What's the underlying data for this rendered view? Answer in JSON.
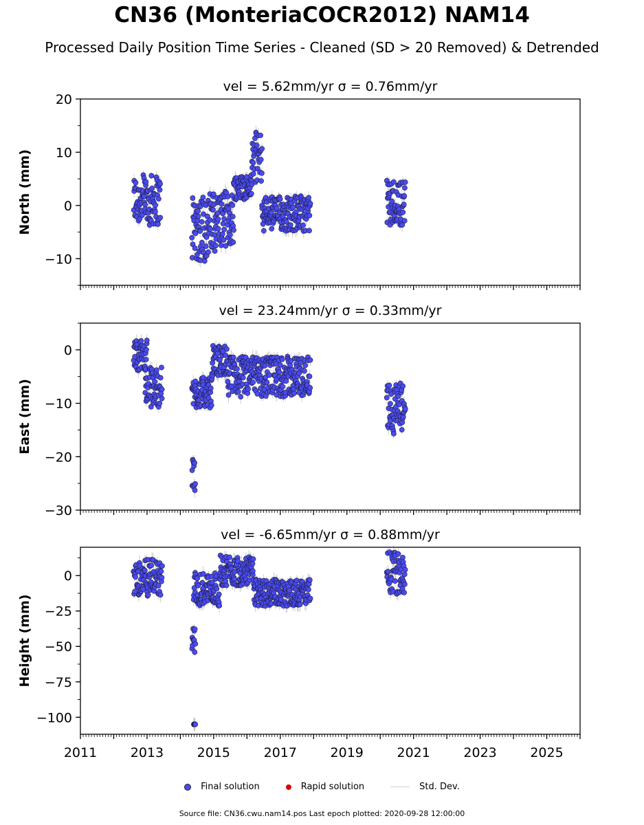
{
  "title": "CN36 (MonteriaCOCR2012) NAM14",
  "subtitle": "Processed Daily Position Time Series - Cleaned (SD > 20 Removed) & Detrended",
  "legend": {
    "final": "Final solution",
    "rapid": "Rapid solution",
    "std": "Std. Dev."
  },
  "source": "Source file: CN36.cwu.nam14.pos  Last epoch plotted: 2020-09-28 12:00:00",
  "colors": {
    "final": "#4b4bf0",
    "rapid": "#e00000",
    "std": "#bdbdbd"
  },
  "chart_data": [
    {
      "type": "scatter",
      "title": "vel = 5.62mm/yr   σ = 0.76mm/yr",
      "ylabel": "North (mm)",
      "xlim": [
        2011,
        2026
      ],
      "ylim": [
        -15,
        20
      ],
      "yticks": [
        -10,
        0,
        10,
        20
      ],
      "segments": [
        {
          "x": [
            2012.6,
            2013.4
          ],
          "y": [
            -4,
            6
          ]
        },
        {
          "x": [
            2014.35,
            2015.05
          ],
          "y": [
            -11,
            3
          ]
        },
        {
          "x": [
            2015.05,
            2015.6
          ],
          "y": [
            -8,
            3
          ]
        },
        {
          "x": [
            2015.6,
            2016.15
          ],
          "y": [
            1,
            6
          ]
        },
        {
          "x": [
            2016.15,
            2016.45
          ],
          "y": [
            4,
            14
          ]
        },
        {
          "x": [
            2016.45,
            2017.9
          ],
          "y": [
            -5,
            2
          ]
        },
        {
          "x": [
            2020.2,
            2020.75
          ],
          "y": [
            -4,
            5
          ]
        }
      ]
    },
    {
      "type": "scatter",
      "title": "vel = 23.24mm/yr   σ = 0.33mm/yr",
      "ylabel": "East (mm)",
      "xlim": [
        2011,
        2026
      ],
      "ylim": [
        -30,
        5
      ],
      "yticks": [
        -30,
        -20,
        -10,
        0
      ],
      "segments": [
        {
          "x": [
            2012.6,
            2013.0
          ],
          "y": [
            -4,
            2
          ]
        },
        {
          "x": [
            2012.95,
            2013.45
          ],
          "y": [
            -11,
            -3
          ]
        },
        {
          "x": [
            2014.35,
            2014.45
          ],
          "y": [
            -27,
            -20
          ]
        },
        {
          "x": [
            2014.35,
            2014.95
          ],
          "y": [
            -11,
            -5
          ]
        },
        {
          "x": [
            2014.95,
            2015.4
          ],
          "y": [
            -5,
            1
          ]
        },
        {
          "x": [
            2015.4,
            2017.9
          ],
          "y": [
            -9,
            -1
          ]
        },
        {
          "x": [
            2020.2,
            2020.75
          ],
          "y": [
            -16,
            -6
          ]
        }
      ]
    },
    {
      "type": "scatter",
      "title": "vel = -6.65mm/yr   σ = 0.88mm/yr",
      "ylabel": "Height (mm)",
      "xlim": [
        2011,
        2026
      ],
      "ylim": [
        -112,
        20
      ],
      "yticks": [
        -100,
        -75,
        -50,
        -25,
        0
      ],
      "segments": [
        {
          "x": [
            2012.6,
            2013.45
          ],
          "y": [
            -15,
            12
          ]
        },
        {
          "x": [
            2014.35,
            2014.45
          ],
          "y": [
            -55,
            -37
          ]
        },
        {
          "x": [
            2014.4,
            2014.45
          ],
          "y": [
            -105,
            -105
          ]
        },
        {
          "x": [
            2014.4,
            2015.2
          ],
          "y": [
            -22,
            3
          ]
        },
        {
          "x": [
            2015.2,
            2016.2
          ],
          "y": [
            -8,
            15
          ]
        },
        {
          "x": [
            2016.2,
            2017.9
          ],
          "y": [
            -22,
            -2
          ]
        },
        {
          "x": [
            2020.2,
            2020.75
          ],
          "y": [
            -14,
            18
          ]
        }
      ]
    }
  ],
  "xticks": [
    "2011",
    "2013",
    "2015",
    "2017",
    "2019",
    "2021",
    "2023",
    "2025"
  ]
}
